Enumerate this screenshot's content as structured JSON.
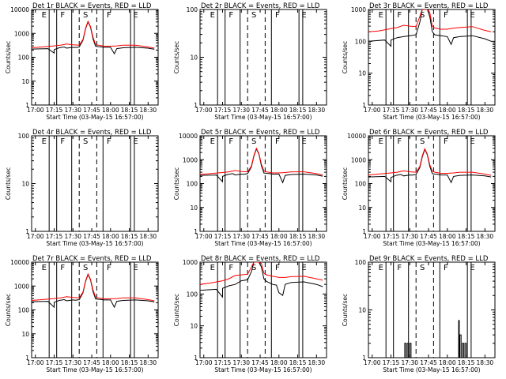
{
  "figure": {
    "xlabel": "Start Time (03-May-15 16:57:00)",
    "ylabel": "Counts/sec",
    "x_ticks": [
      "17:00",
      "17:15",
      "17:30",
      "17:45",
      "18:00",
      "18:15",
      "18:30"
    ],
    "colors": {
      "events": "#000000",
      "lld": "#ff0000"
    }
  },
  "chart_data": [
    {
      "type": "line",
      "title": "Det 1r BLACK = Events, RED = LLD",
      "xlabel": "Start Time (03-May-15 16:57:00)",
      "ylabel": "Counts/sec",
      "xlim": [
        "16:57",
        "18:38"
      ],
      "ylim": [
        1,
        10000
      ],
      "y_scale": "log",
      "y_ticks": [
        "1",
        "10",
        "100",
        "1000",
        "10000"
      ],
      "interval_labels": [
        "E",
        "F",
        "S",
        "F",
        "E"
      ],
      "series": [
        {
          "name": "Events",
          "color": "#000000",
          "x": [
            "16:57",
            "17:10",
            "17:15",
            "17:15",
            "17:19",
            "17:23",
            "17:25",
            "17:30",
            "17:32",
            "17:35",
            "17:38",
            "17:40",
            "17:42",
            "17:44",
            "17:46",
            "17:48",
            "17:50",
            "17:52",
            "17:55",
            "18:00",
            "18:03",
            "18:05",
            "18:10",
            "18:20",
            "18:30",
            "18:35"
          ],
          "values": [
            220,
            230,
            150,
            210,
            250,
            270,
            240,
            260,
            255,
            270,
            520,
            1500,
            3000,
            1800,
            600,
            290,
            280,
            275,
            260,
            260,
            140,
            230,
            250,
            260,
            240,
            215
          ]
        },
        {
          "name": "LLD",
          "color": "#ff0000",
          "x": [
            "16:57",
            "17:05",
            "17:15",
            "17:20",
            "17:25",
            "17:30",
            "17:35",
            "17:38",
            "17:40",
            "17:42",
            "17:44",
            "17:46",
            "17:48",
            "17:50",
            "17:55",
            "18:00",
            "18:05",
            "18:10",
            "18:20",
            "18:30",
            "18:35"
          ],
          "values": [
            250,
            270,
            300,
            320,
            360,
            330,
            320,
            560,
            1600,
            3200,
            1900,
            700,
            350,
            320,
            290,
            290,
            300,
            320,
            320,
            270,
            240
          ]
        }
      ]
    },
    {
      "type": "line",
      "title": "Det 2r BLACK = Events, RED = LLD",
      "xlabel": "Start Time (03-May-15 16:57:00)",
      "ylabel": "Counts/sec",
      "xlim": [
        "16:57",
        "18:38"
      ],
      "ylim": [
        1,
        100
      ],
      "y_scale": "log",
      "y_ticks": [
        "1",
        "10",
        "100"
      ],
      "interval_labels": [
        "E",
        "F",
        "S",
        "F",
        "E"
      ],
      "series": []
    },
    {
      "type": "line",
      "title": "Det 3r BLACK = Events, RED = LLD",
      "xlabel": "Start Time (03-May-15 16:57:00)",
      "ylabel": "Counts/sec",
      "xlim": [
        "16:57",
        "18:38"
      ],
      "ylim": [
        1,
        1000
      ],
      "y_scale": "log",
      "y_ticks": [
        "1",
        "10",
        "100",
        "1000"
      ],
      "interval_labels": [
        "E",
        "F",
        "S",
        "F",
        "E"
      ],
      "series": [
        {
          "name": "Events",
          "color": "#000000",
          "x": [
            "16:57",
            "17:10",
            "17:15",
            "17:15",
            "17:20",
            "17:25",
            "17:30",
            "17:35",
            "17:38",
            "17:40",
            "17:42",
            "17:44",
            "17:46",
            "17:48",
            "17:50",
            "17:55",
            "18:00",
            "18:03",
            "18:05",
            "18:10",
            "18:20",
            "18:30",
            "18:35"
          ],
          "values": [
            100,
            110,
            70,
            110,
            130,
            140,
            150,
            160,
            400,
            1000,
            1000,
            1000,
            600,
            200,
            160,
            150,
            140,
            80,
            130,
            140,
            150,
            120,
            100
          ]
        },
        {
          "name": "LLD",
          "color": "#ff0000",
          "x": [
            "16:57",
            "17:05",
            "17:15",
            "17:20",
            "17:25",
            "17:30",
            "17:35",
            "17:38",
            "17:40",
            "17:42",
            "17:44",
            "17:46",
            "17:48",
            "17:50",
            "17:55",
            "18:00",
            "18:05",
            "18:10",
            "18:20",
            "18:30",
            "18:35"
          ],
          "values": [
            200,
            210,
            250,
            270,
            320,
            300,
            290,
            600,
            1000,
            1000,
            1000,
            800,
            300,
            260,
            240,
            240,
            260,
            270,
            290,
            220,
            200
          ]
        }
      ]
    },
    {
      "type": "line",
      "title": "Det 4r BLACK = Events, RED = LLD",
      "xlabel": "Start Time (03-May-15 16:57:00)",
      "ylabel": "Counts/sec",
      "xlim": [
        "16:57",
        "18:38"
      ],
      "ylim": [
        1,
        100
      ],
      "y_scale": "log",
      "y_ticks": [
        "1",
        "10",
        "100"
      ],
      "interval_labels": [
        "E",
        "F",
        "S",
        "F",
        "E"
      ],
      "series": []
    },
    {
      "type": "line",
      "title": "Det 5r BLACK = Events, RED = LLD",
      "xlabel": "Start Time (03-May-15 16:57:00)",
      "ylabel": "Counts/sec",
      "xlim": [
        "16:57",
        "18:38"
      ],
      "ylim": [
        1,
        10000
      ],
      "y_scale": "log",
      "y_ticks": [
        "1",
        "10",
        "100",
        "1000",
        "10000"
      ],
      "interval_labels": [
        "E",
        "F",
        "S",
        "F",
        "E"
      ],
      "series": [
        {
          "name": "Events",
          "color": "#000000",
          "x": [
            "16:57",
            "17:10",
            "17:15",
            "17:15",
            "17:19",
            "17:23",
            "17:25",
            "17:30",
            "17:32",
            "17:35",
            "17:38",
            "17:40",
            "17:42",
            "17:44",
            "17:46",
            "17:48",
            "17:50",
            "17:52",
            "17:55",
            "18:00",
            "18:03",
            "18:05",
            "18:10",
            "18:20",
            "18:30",
            "18:35"
          ],
          "values": [
            220,
            230,
            120,
            200,
            240,
            260,
            230,
            250,
            245,
            260,
            500,
            1400,
            2800,
            1700,
            560,
            280,
            270,
            265,
            250,
            250,
            110,
            220,
            240,
            250,
            230,
            205
          ]
        },
        {
          "name": "LLD",
          "color": "#ff0000",
          "x": [
            "16:57",
            "17:05",
            "17:15",
            "17:20",
            "17:25",
            "17:30",
            "17:35",
            "17:38",
            "17:40",
            "17:42",
            "17:44",
            "17:46",
            "17:48",
            "17:50",
            "17:55",
            "18:00",
            "18:05",
            "18:10",
            "18:20",
            "18:30",
            "18:35"
          ],
          "values": [
            240,
            260,
            290,
            310,
            350,
            320,
            310,
            540,
            1500,
            3000,
            1800,
            650,
            340,
            310,
            280,
            280,
            290,
            310,
            310,
            260,
            230
          ]
        }
      ]
    },
    {
      "type": "line",
      "title": "Det 6r BLACK = Events, RED = LLD",
      "xlabel": "Start Time (03-May-15 16:57:00)",
      "ylabel": "Counts/sec",
      "xlim": [
        "16:57",
        "18:38"
      ],
      "ylim": [
        1,
        10000
      ],
      "y_scale": "log",
      "y_ticks": [
        "1",
        "10",
        "100",
        "1000",
        "10000"
      ],
      "interval_labels": [
        "E",
        "F",
        "S",
        "F",
        "E"
      ],
      "series": [
        {
          "name": "Events",
          "color": "#000000",
          "x": [
            "16:57",
            "17:10",
            "17:15",
            "17:15",
            "17:19",
            "17:23",
            "17:25",
            "17:30",
            "17:32",
            "17:35",
            "17:38",
            "17:40",
            "17:42",
            "17:44",
            "17:46",
            "17:48",
            "17:50",
            "17:52",
            "17:55",
            "18:00",
            "18:03",
            "18:05",
            "18:10",
            "18:20",
            "18:30",
            "18:35"
          ],
          "values": [
            190,
            200,
            120,
            180,
            220,
            240,
            210,
            230,
            225,
            240,
            470,
            1300,
            2700,
            1600,
            530,
            260,
            250,
            245,
            230,
            230,
            110,
            200,
            220,
            230,
            210,
            190
          ]
        },
        {
          "name": "LLD",
          "color": "#ff0000",
          "x": [
            "16:57",
            "17:05",
            "17:15",
            "17:20",
            "17:25",
            "17:30",
            "17:35",
            "17:38",
            "17:40",
            "17:42",
            "17:44",
            "17:46",
            "17:48",
            "17:50",
            "17:55",
            "18:00",
            "18:05",
            "18:10",
            "18:20",
            "18:30",
            "18:35"
          ],
          "values": [
            230,
            250,
            280,
            300,
            340,
            310,
            300,
            520,
            1450,
            2900,
            1700,
            620,
            330,
            300,
            270,
            270,
            280,
            300,
            300,
            250,
            220
          ]
        }
      ]
    },
    {
      "type": "line",
      "title": "Det 7r BLACK = Events, RED = LLD",
      "xlabel": "Start Time (03-May-15 16:57:00)",
      "ylabel": "Counts/sec",
      "xlim": [
        "16:57",
        "18:38"
      ],
      "ylim": [
        1,
        10000
      ],
      "y_scale": "log",
      "y_ticks": [
        "1",
        "10",
        "100",
        "1000",
        "10000"
      ],
      "interval_labels": [
        "E",
        "F",
        "S",
        "F",
        "E"
      ],
      "series": [
        {
          "name": "Events",
          "color": "#000000",
          "x": [
            "16:57",
            "17:10",
            "17:15",
            "17:15",
            "17:19",
            "17:23",
            "17:25",
            "17:30",
            "17:32",
            "17:35",
            "17:38",
            "17:40",
            "17:42",
            "17:44",
            "17:46",
            "17:48",
            "17:50",
            "17:52",
            "17:55",
            "18:00",
            "18:03",
            "18:05",
            "18:10",
            "18:20",
            "18:30",
            "18:35"
          ],
          "values": [
            220,
            230,
            130,
            210,
            250,
            270,
            240,
            260,
            255,
            270,
            520,
            1500,
            3000,
            1800,
            600,
            290,
            280,
            275,
            260,
            260,
            130,
            230,
            250,
            260,
            240,
            215
          ]
        },
        {
          "name": "LLD",
          "color": "#ff0000",
          "x": [
            "16:57",
            "17:05",
            "17:15",
            "17:20",
            "17:25",
            "17:30",
            "17:35",
            "17:38",
            "17:40",
            "17:42",
            "17:44",
            "17:46",
            "17:48",
            "17:50",
            "17:55",
            "18:00",
            "18:05",
            "18:10",
            "18:20",
            "18:30",
            "18:35"
          ],
          "values": [
            250,
            270,
            300,
            320,
            360,
            330,
            320,
            560,
            1600,
            3200,
            1900,
            700,
            350,
            320,
            290,
            290,
            300,
            320,
            320,
            270,
            240
          ]
        }
      ]
    },
    {
      "type": "line",
      "title": "Det 8r BLACK = Events, RED = LLD",
      "xlabel": "Start Time (03-May-15 16:57:00)",
      "ylabel": "Counts/sec",
      "xlim": [
        "16:57",
        "18:38"
      ],
      "ylim": [
        1,
        1000
      ],
      "y_scale": "log",
      "y_ticks": [
        "1",
        "10",
        "100",
        "1000"
      ],
      "interval_labels": [
        "E",
        "F",
        "S",
        "F",
        "E"
      ],
      "series": [
        {
          "name": "Events",
          "color": "#000000",
          "x": [
            "16:57",
            "17:10",
            "17:15",
            "17:15",
            "17:20",
            "17:25",
            "17:30",
            "17:35",
            "17:38",
            "17:40",
            "17:42",
            "17:44",
            "17:46",
            "17:48",
            "17:50",
            "17:55",
            "17:58",
            "18:00",
            "18:03",
            "18:05",
            "18:10",
            "18:20",
            "18:30",
            "18:35"
          ],
          "values": [
            130,
            140,
            80,
            150,
            180,
            200,
            260,
            280,
            500,
            1000,
            1000,
            1000,
            700,
            300,
            250,
            200,
            190,
            110,
            90,
            200,
            230,
            240,
            200,
            170
          ]
        },
        {
          "name": "LLD",
          "color": "#ff0000",
          "x": [
            "16:57",
            "17:05",
            "17:15",
            "17:20",
            "17:25",
            "17:30",
            "17:35",
            "17:38",
            "17:40",
            "17:42",
            "17:44",
            "17:46",
            "17:48",
            "17:50",
            "17:55",
            "18:00",
            "18:05",
            "18:10",
            "18:20",
            "18:30",
            "18:35"
          ],
          "values": [
            200,
            220,
            260,
            300,
            380,
            400,
            420,
            700,
            1000,
            1000,
            1000,
            900,
            450,
            400,
            360,
            330,
            330,
            350,
            360,
            300,
            270
          ]
        }
      ]
    },
    {
      "type": "line",
      "title": "Det 9r BLACK = Events, RED = LLD",
      "xlabel": "Start Time (03-May-15 16:57:00)",
      "ylabel": "Counts/sec",
      "xlim": [
        "16:57",
        "18:38"
      ],
      "ylim": [
        1,
        100
      ],
      "y_scale": "log",
      "y_ticks": [
        "1",
        "10",
        "100"
      ],
      "interval_labels": [
        "E",
        "F",
        "S",
        "F",
        "E"
      ],
      "series": [
        {
          "name": "Events",
          "color": "#000000",
          "x": [
            "17:26",
            "17:26",
            "17:27",
            "17:27",
            "17:28",
            "17:28",
            "17:29",
            "17:29",
            "17:30",
            "17:30",
            "17:31",
            "17:31",
            "18:09",
            "18:09",
            "18:09.5",
            "18:09.5",
            "18:10",
            "18:10",
            "18:11",
            "18:11",
            "18:12",
            "18:12",
            "18:13",
            "18:13",
            "18:14",
            "18:14",
            "18:15",
            "18:15"
          ],
          "values": [
            1,
            2,
            2,
            1,
            1,
            2,
            2,
            1,
            1,
            2,
            2,
            1,
            1,
            6,
            6,
            1,
            1,
            3,
            3,
            1,
            1,
            2,
            2,
            1,
            1,
            2,
            2,
            1
          ]
        }
      ]
    }
  ]
}
